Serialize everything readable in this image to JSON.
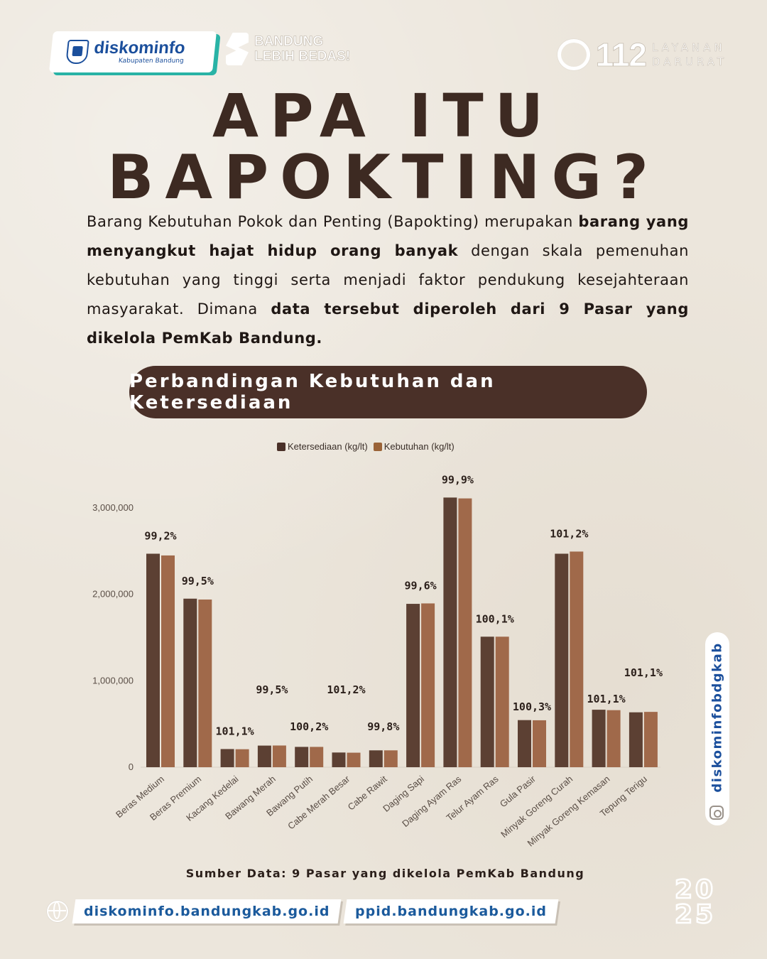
{
  "header": {
    "logo_main": "diskominfo",
    "logo_sub": "Kabupaten Bandung",
    "tagline_line1": "BANDUNG",
    "tagline_line2": "LEBIH BEDAS!",
    "emergency_number": "112",
    "emergency_word1": "LAYANAN",
    "emergency_word2": "DARURAT"
  },
  "title": {
    "line1": "APA ITU",
    "line2": "BAPOKTING?"
  },
  "intro": {
    "part1": "Barang Kebutuhan Pokok dan Penting (Bapokting) merupakan ",
    "bold1": "barang yang menyangkut hajat hidup orang banyak",
    "part2": " dengan skala pemenuhan kebutuhan yang tinggi serta menjadi faktor pendukung kesejahteraan masyarakat. Dimana ",
    "bold2": "data tersebut diperoleh dari 9 Pasar yang dikelola PemKab Bandung."
  },
  "section_title": "Perbandingan Kebutuhan dan Ketersediaan",
  "chart_data": {
    "type": "bar",
    "categories": [
      "Beras Medium",
      "Beras Premium",
      "Kacang Kedelai",
      "Bawang Merah",
      "Bawang Putih",
      "Cabe Merah Besar",
      "Cabe Rawit",
      "Daging Sapi",
      "Daging Ayam Ras",
      "Telur Ayam Ras",
      "Gula Pasir",
      "Minyak Goreng Curah",
      "Minyak Goreng Kemasan",
      "Tepung Terigu"
    ],
    "series": [
      {
        "name": "Ketersediaan (kg/lt)",
        "color": "#5c4033",
        "values": [
          2470000,
          1950000,
          210000,
          250000,
          235000,
          170000,
          195000,
          1890000,
          3120000,
          1510000,
          545000,
          2470000,
          665000,
          635000
        ]
      },
      {
        "name": "Kebutuhan (kg/lt)",
        "color": "#a0694a",
        "values": [
          2450000,
          1940000,
          208000,
          251000,
          235000,
          168000,
          195000,
          1895000,
          3110000,
          1510000,
          543000,
          2495000,
          660000,
          640000
        ]
      }
    ],
    "annotations": [
      "99,2%",
      "99,5%",
      "101,1%",
      "99,5%",
      "100,2%",
      "101,2%",
      "99,8%",
      "99,6%",
      "99,9%",
      "100,1%",
      "100,3%",
      "101,2%",
      "101,1%",
      "101,1%"
    ],
    "y_ticks": [
      "0",
      "1,000,000",
      "2,000,000",
      "3,000,000"
    ],
    "y_tick_values": [
      0,
      1000000,
      2000000,
      3000000
    ],
    "ylim": [
      0,
      3300000
    ],
    "legend_position": "top-center",
    "grid": false
  },
  "source_note": "Sumber Data: 9 Pasar yang dikelola PemKab Bandung",
  "social": {
    "instagram_handle": "diskominfobdgkab",
    "icon": "instagram-icon"
  },
  "footer": {
    "url1": "diskominfo.bandungkab.go.id",
    "url2": "ppid.bandungkab.go.id",
    "year_line1": "20",
    "year_line2": "25"
  },
  "colors": {
    "background": "#ece6dc",
    "title": "#3d2a22",
    "pill": "#4a3028",
    "accent_teal": "#29b3a6",
    "link_blue": "#1b5a9c"
  }
}
